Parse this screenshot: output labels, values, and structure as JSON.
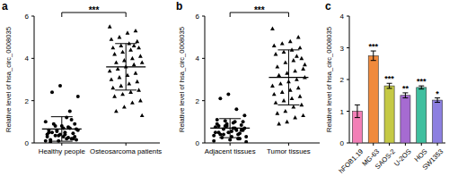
{
  "chart_data": [
    {
      "type": "dot_plot",
      "panel": "a",
      "y_label": "Relative level of hsa_circ_0008035",
      "categories": [
        "Healthy people",
        "Osteosarcoma patients"
      ],
      "marker": [
        "circle",
        "triangle"
      ],
      "color": "#000000",
      "values": [
        [
          0.1,
          0.2,
          0.3,
          0.35,
          0.4,
          0.45,
          0.5,
          0.55,
          0.6,
          0.3,
          0.2,
          0.1,
          0.05,
          0.15,
          0.25,
          0.4,
          0.5,
          0.6,
          0.7,
          0.8,
          0.9,
          1.0,
          1.1,
          0.7,
          0.8,
          0.3,
          0.2,
          0.4,
          0.6,
          0.5,
          0.9,
          1.2,
          0.35,
          0.15,
          0.65,
          0.75,
          2.7,
          2.4,
          2.2,
          1.5
        ],
        [
          5.5,
          5.3,
          5.2,
          5.0,
          4.9,
          4.8,
          4.7,
          4.6,
          4.5,
          4.5,
          4.4,
          4.3,
          4.2,
          4.1,
          4.0,
          3.9,
          3.8,
          3.8,
          3.7,
          3.6,
          3.5,
          3.4,
          3.3,
          3.2,
          3.1,
          3.0,
          2.9,
          2.8,
          2.7,
          2.6,
          2.5,
          2.4,
          2.3,
          2.2,
          2.0,
          1.9,
          1.7,
          1.5,
          1.3,
          4.6
        ]
      ],
      "mean": [
        0.66,
        3.6
      ],
      "sd": [
        0.58,
        1.1
      ],
      "significance": "***",
      "ylim": [
        0,
        6
      ],
      "yticks": [
        0,
        2,
        4,
        6
      ],
      "grid": false
    },
    {
      "type": "dot_plot",
      "panel": "b",
      "y_label": "Relative level of hsa_circ_0008035",
      "categories": [
        "Adjacent tissues",
        "Tumor tissues"
      ],
      "marker": [
        "circle",
        "triangle"
      ],
      "color": "#000000",
      "values": [
        [
          0.1,
          0.2,
          0.3,
          0.4,
          0.5,
          0.6,
          0.7,
          0.8,
          0.9,
          1.0,
          1.0,
          0.9,
          0.8,
          0.7,
          0.6,
          0.5,
          0.4,
          0.3,
          0.2,
          0.15,
          0.25,
          0.35,
          0.45,
          0.55,
          0.65,
          0.75,
          0.85,
          0.95,
          1.05,
          1.1,
          0.6,
          0.7,
          0.8,
          0.5,
          1.3,
          1.6,
          2.3,
          2.1,
          0.05,
          0.4
        ],
        [
          5.4,
          5.0,
          4.8,
          4.7,
          4.6,
          4.5,
          4.4,
          4.3,
          4.2,
          4.0,
          3.9,
          3.8,
          3.6,
          3.5,
          3.4,
          3.3,
          3.2,
          3.1,
          3.0,
          2.9,
          2.8,
          2.7,
          2.6,
          2.5,
          2.4,
          2.3,
          2.2,
          2.1,
          2.0,
          1.9,
          1.8,
          1.7,
          1.5,
          1.4,
          1.3,
          1.2,
          1.0,
          0.9,
          3.7,
          4.1
        ]
      ],
      "mean": [
        0.7,
        3.1
      ],
      "sd": [
        0.45,
        1.3
      ],
      "significance": "***",
      "ylim": [
        0,
        6
      ],
      "yticks": [
        0,
        2,
        4,
        6
      ],
      "grid": false
    },
    {
      "type": "bar",
      "panel": "c",
      "y_label": "Relative level of hsa_circ_0008035",
      "categories": [
        "hFOB1.19",
        "MG-63",
        "SAOS-2",
        "U-2OS",
        "HOS",
        "SW1353"
      ],
      "values": [
        1.0,
        2.75,
        1.8,
        1.5,
        1.75,
        1.35
      ],
      "errors": [
        0.2,
        0.15,
        0.08,
        0.08,
        0.05,
        0.07
      ],
      "significance": [
        null,
        "***",
        "***",
        "**",
        "***",
        "*"
      ],
      "colors": [
        "#f27fb6",
        "#f08a3c",
        "#c5c945",
        "#a66bd1",
        "#3fbf9f",
        "#8c7fe0"
      ],
      "ylim": [
        0,
        4
      ],
      "yticks": [
        0,
        1,
        2,
        3,
        4
      ],
      "grid": false
    }
  ]
}
